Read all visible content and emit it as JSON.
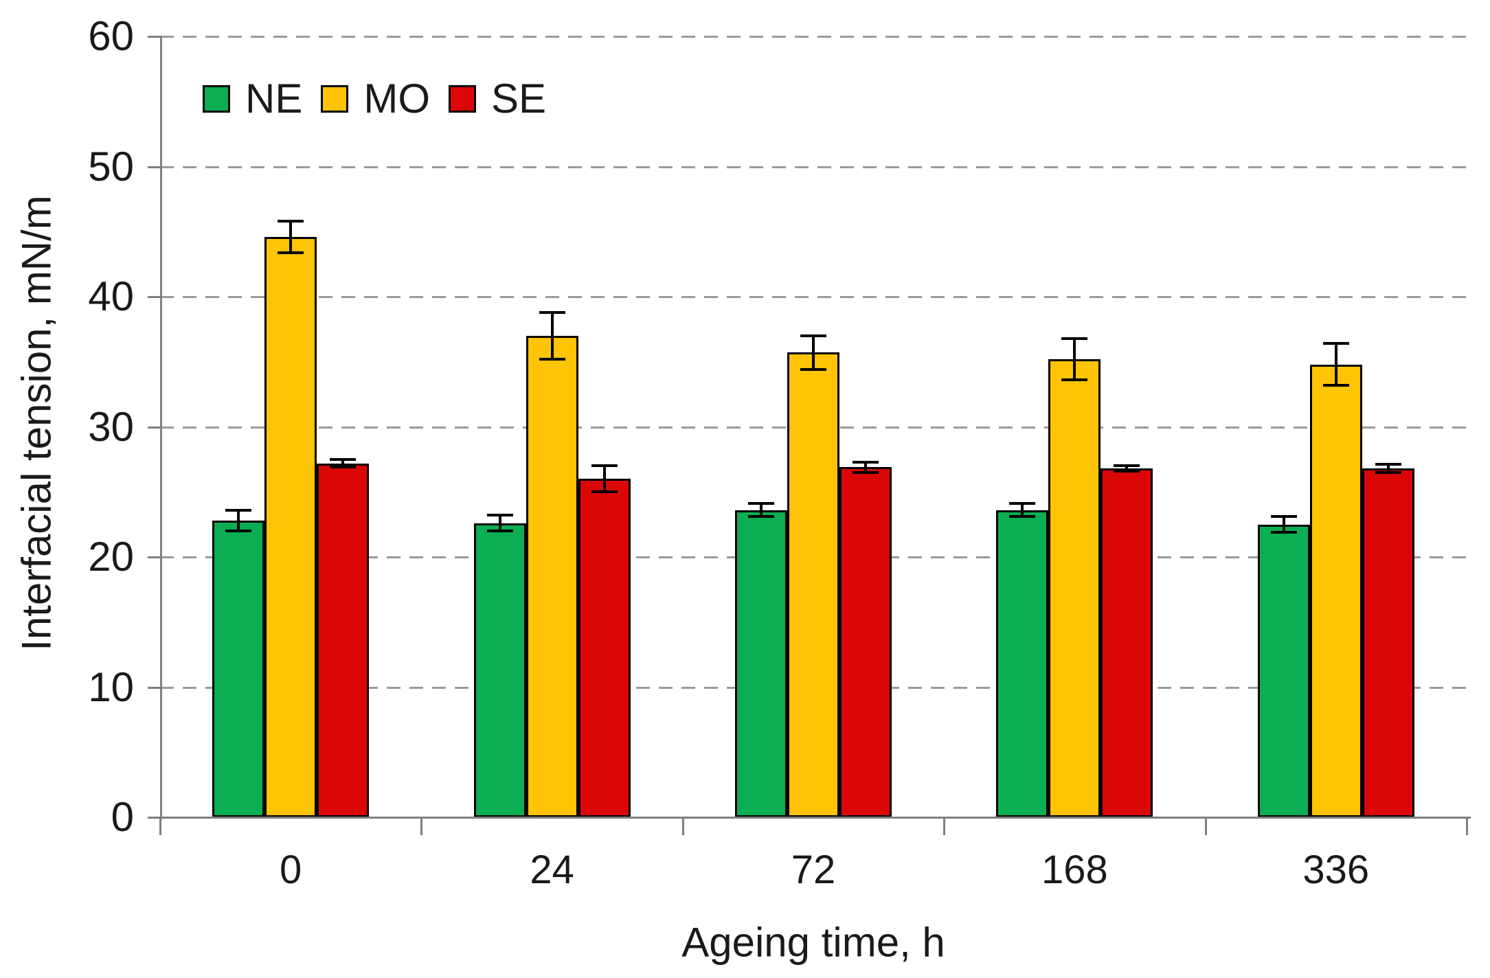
{
  "chart_data": {
    "type": "bar",
    "title": "",
    "xlabel": "Ageing time, h",
    "ylabel": "Interfacial tension, mN/m",
    "categories": [
      "0",
      "24",
      "72",
      "168",
      "336"
    ],
    "series": [
      {
        "name": "NE",
        "color": "#0BAE52",
        "values": [
          22.8,
          22.6,
          23.6,
          23.6,
          22.5
        ],
        "errors": [
          0.8,
          0.6,
          0.5,
          0.5,
          0.6
        ]
      },
      {
        "name": "MO",
        "color": "#FFC405",
        "values": [
          44.6,
          37.0,
          35.7,
          35.2,
          34.8
        ],
        "errors": [
          1.2,
          1.8,
          1.3,
          1.6,
          1.6
        ]
      },
      {
        "name": "SE",
        "color": "#DB0707",
        "values": [
          27.2,
          26.0,
          26.9,
          26.8,
          26.8
        ],
        "errors": [
          0.3,
          1.0,
          0.4,
          0.2,
          0.3
        ]
      }
    ],
    "ylim": [
      0,
      60
    ],
    "ytick_step": 10,
    "yticks": [
      "0",
      "10",
      "20",
      "30",
      "40",
      "50",
      "60"
    ],
    "grid": "horizontal-dashed",
    "legend_position": "top-left-inside",
    "error_bars": "symmetric-both-ends"
  },
  "styles": {
    "background": "#ffffff",
    "grid_color": "#9a9a9a",
    "axis_color": "#7f7f7f",
    "bar_border_color": "#000000",
    "error_bar_color": "#000000",
    "text_color": "#1a1a1a"
  }
}
